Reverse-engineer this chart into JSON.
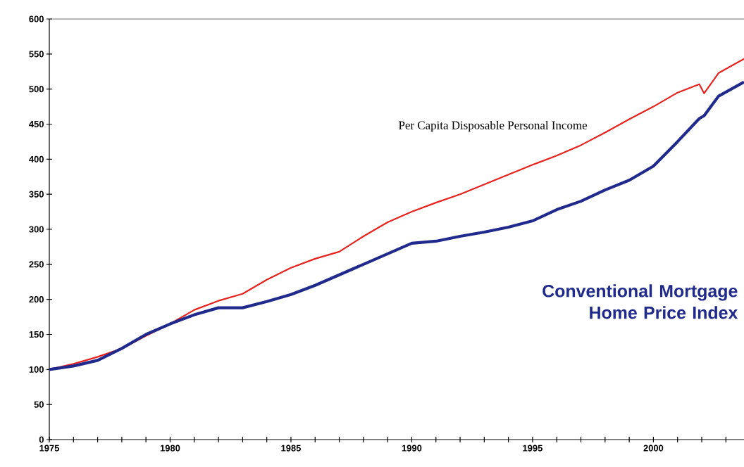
{
  "chart_data": {
    "type": "line",
    "x": [
      1975,
      1976,
      1977,
      1978,
      1979,
      1980,
      1981,
      1982,
      1983,
      1984,
      1985,
      1986,
      1987,
      1988,
      1989,
      1990,
      1991,
      1992,
      1993,
      1994,
      1995,
      1996,
      1997,
      1998,
      1999,
      2000,
      2001,
      2001.9,
      2002.1,
      2002.7,
      2003.75
    ],
    "series": [
      {
        "name": "Per Capita Disposable Personal Income",
        "color": "#e8231e",
        "values": [
          100,
          108,
          118,
          130,
          148,
          165,
          185,
          198,
          208,
          228,
          245,
          258,
          268,
          290,
          310,
          325,
          338,
          350,
          364,
          378,
          392,
          405,
          420,
          438,
          457,
          475,
          495,
          507,
          494,
          523,
          543
        ]
      },
      {
        "name": "Conventional Mortgage\nHome Price Index",
        "color": "#1f2a8c",
        "values": [
          100,
          105,
          113,
          130,
          150,
          165,
          178,
          188,
          188,
          197,
          207,
          220,
          235,
          250,
          265,
          280,
          283,
          290,
          296,
          303,
          312,
          328,
          340,
          356,
          370,
          390,
          425,
          458,
          462,
          490,
          510
        ]
      }
    ],
    "xlim": [
      1975,
      2003.75
    ],
    "ylim": [
      0,
      600
    ],
    "xticks": [
      1975,
      {
        "value": 1976,
        "label": null
      },
      {
        "value": 1977,
        "label": null
      },
      {
        "value": 1978,
        "label": null
      },
      {
        "value": 1979,
        "label": null
      },
      1980,
      {
        "value": 1981,
        "label": null
      },
      {
        "value": 1982,
        "label": null
      },
      {
        "value": 1983,
        "label": null
      },
      {
        "value": 1984,
        "label": null
      },
      1985,
      {
        "value": 1986,
        "label": null
      },
      {
        "value": 1987,
        "label": null
      },
      {
        "value": 1988,
        "label": null
      },
      {
        "value": 1989,
        "label": null
      },
      1990,
      {
        "value": 1991,
        "label": null
      },
      {
        "value": 1992,
        "label": null
      },
      {
        "value": 1993,
        "label": null
      },
      {
        "value": 1994,
        "label": null
      },
      1995,
      {
        "value": 1996,
        "label": null
      },
      {
        "value": 1997,
        "label": null
      },
      {
        "value": 1998,
        "label": null
      },
      {
        "value": 1999,
        "label": null
      },
      2000,
      {
        "value": 2001,
        "label": null
      },
      {
        "value": 2002,
        "label": null
      },
      {
        "value": 2003,
        "label": null
      }
    ],
    "yticks": [
      0,
      50,
      100,
      150,
      200,
      250,
      300,
      350,
      400,
      450,
      500,
      550,
      600
    ],
    "grid": false,
    "marker": "none",
    "line_style": "solid"
  }
}
